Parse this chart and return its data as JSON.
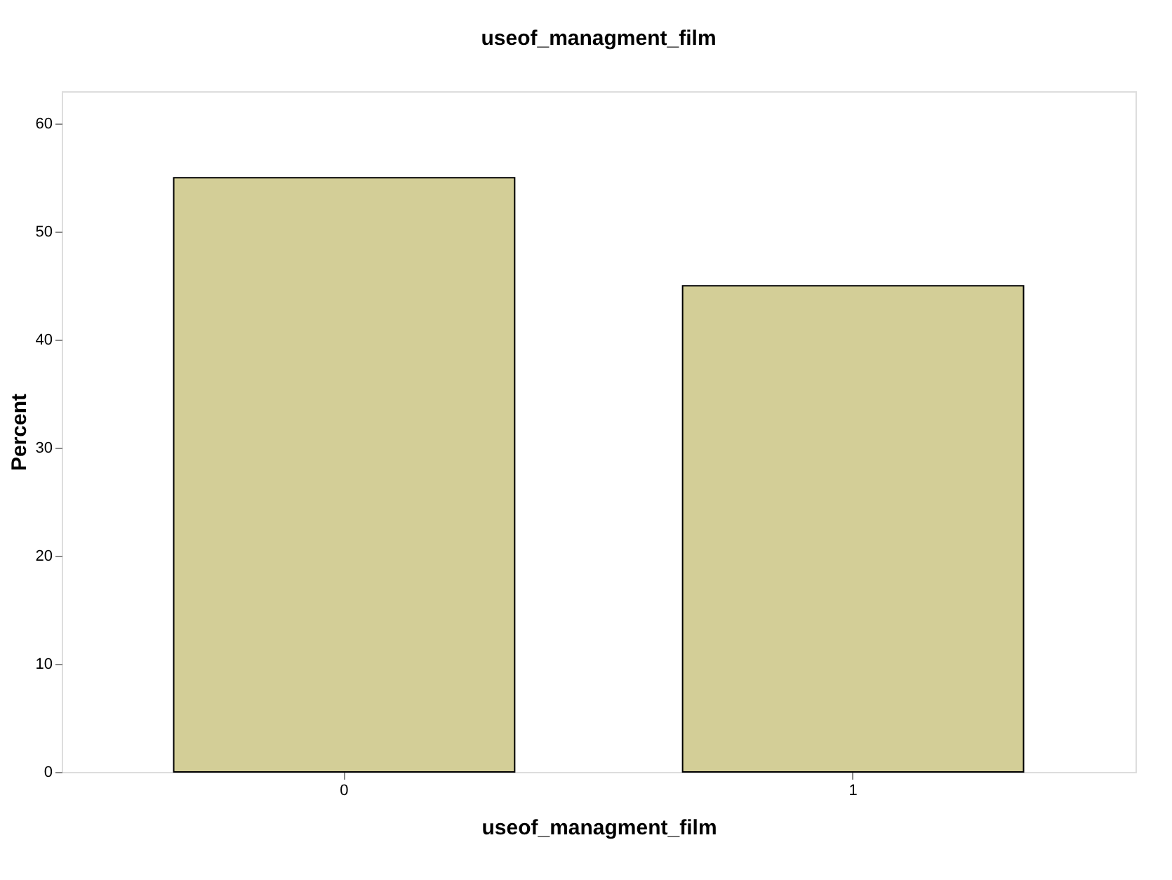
{
  "chart_data": {
    "type": "bar",
    "title": "useof_managment_film",
    "xlabel": "useof_managment_film",
    "ylabel": "Percent",
    "categories": [
      "0",
      "1"
    ],
    "values": [
      55,
      45
    ],
    "color": "#d3ce97",
    "ylim": [
      0,
      63
    ],
    "yticks": [
      0,
      10,
      20,
      30,
      40,
      50,
      60
    ]
  }
}
